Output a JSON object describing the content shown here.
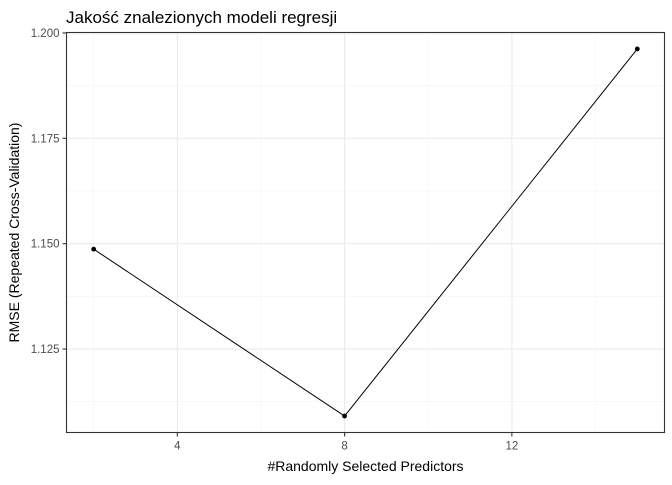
{
  "chart_data": {
    "type": "line",
    "title": "Jakość znalezionych modeli regresji",
    "xlabel": "#Randomly Selected Predictors",
    "ylabel": "RMSE (Repeated Cross-Validation)",
    "x": [
      2,
      8,
      15
    ],
    "series": [
      {
        "values": [
          1.1487,
          1.1091,
          1.1962
        ]
      }
    ],
    "xlim": [
      1.35,
      15.65
    ],
    "ylim": [
      1.1052,
      1.2001
    ],
    "x_ticks": [
      4,
      8,
      12
    ],
    "x_tick_labels": [
      "4",
      "8",
      "12"
    ],
    "y_ticks": [
      1.125,
      1.15,
      1.175,
      1.2
    ],
    "y_tick_labels": [
      "1.125",
      "1.150",
      "1.175",
      "1.200"
    ],
    "grid": true,
    "legend": "none",
    "colors": {
      "line": "#000000",
      "points": "#000000",
      "grid": "#ebebeb",
      "border": "#333333"
    }
  }
}
